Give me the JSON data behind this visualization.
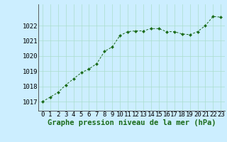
{
  "x": [
    0,
    1,
    2,
    3,
    4,
    5,
    6,
    7,
    8,
    9,
    10,
    11,
    12,
    13,
    14,
    15,
    16,
    17,
    18,
    19,
    20,
    21,
    22,
    23
  ],
  "y": [
    1017.0,
    1017.3,
    1017.6,
    1018.1,
    1018.5,
    1018.9,
    1019.15,
    1019.5,
    1020.3,
    1020.6,
    1021.35,
    1021.6,
    1021.65,
    1021.65,
    1021.8,
    1021.8,
    1021.6,
    1021.6,
    1021.45,
    1021.4,
    1021.6,
    1022.0,
    1022.6,
    1022.55
  ],
  "line_color": "#1a6b1a",
  "marker_color": "#1a6b1a",
  "bg_color": "#cceeff",
  "grid_color": "#aaddcc",
  "xlabel": "Graphe pression niveau de la mer (hPa)",
  "xlabel_fontsize": 7.5,
  "tick_fontsize": 6.5,
  "ylabel_ticks": [
    1017,
    1018,
    1019,
    1020,
    1021,
    1022
  ],
  "ylim": [
    1016.4,
    1023.4
  ],
  "xlim": [
    -0.5,
    23.5
  ],
  "xticks": [
    0,
    1,
    2,
    3,
    4,
    5,
    6,
    7,
    8,
    9,
    10,
    11,
    12,
    13,
    14,
    15,
    16,
    17,
    18,
    19,
    20,
    21,
    22,
    23
  ]
}
